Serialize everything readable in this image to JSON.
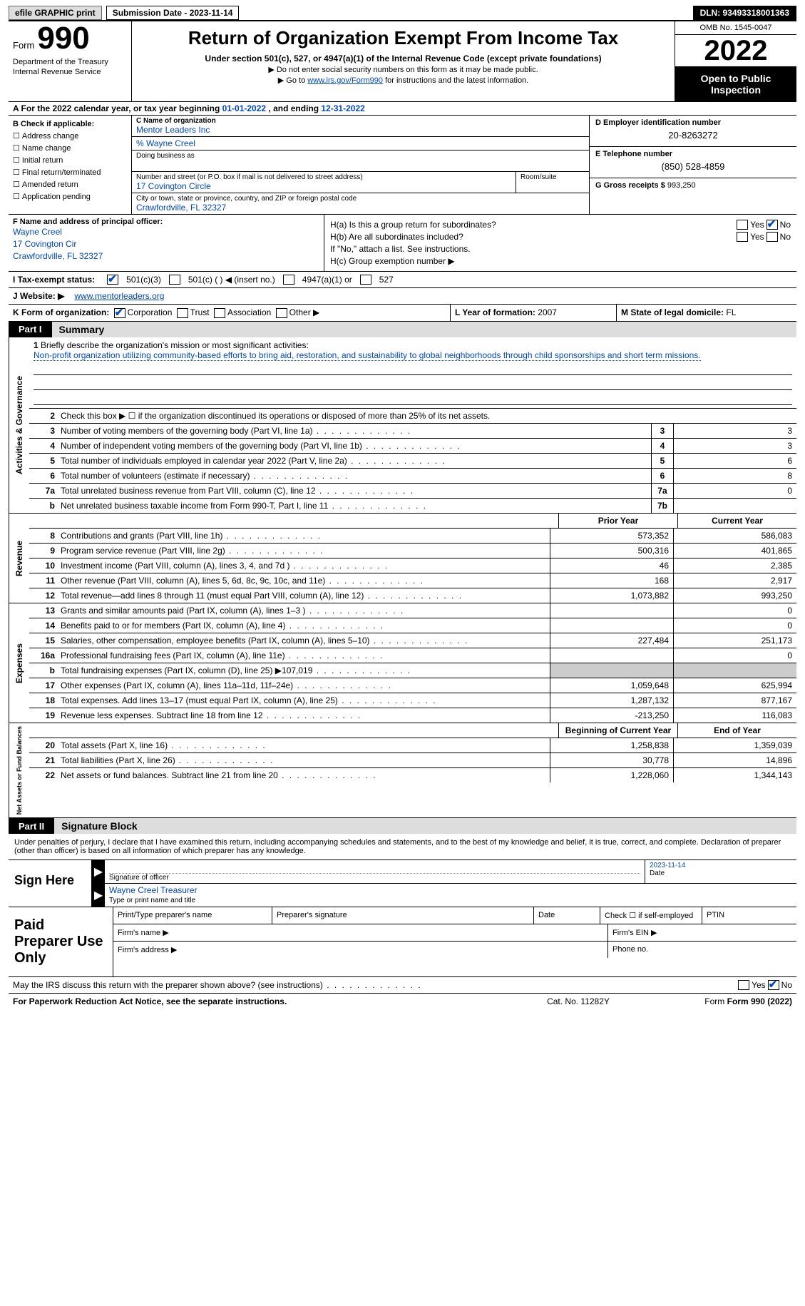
{
  "header": {
    "efile_btn": "efile GRAPHIC print",
    "submission": "Submission Date - 2023-11-14",
    "dln": "DLN: 93493318001363"
  },
  "title": {
    "form_label": "Form",
    "form_number": "990",
    "dept": "Department of the Treasury Internal Revenue Service",
    "main": "Return of Organization Exempt From Income Tax",
    "sub1": "Under section 501(c), 527, or 4947(a)(1) of the Internal Revenue Code (except private foundations)",
    "sub2": "▶ Do not enter social security numbers on this form as it may be made public.",
    "sub3_pre": "▶ Go to ",
    "sub3_link": "www.irs.gov/Form990",
    "sub3_post": " for instructions and the latest information.",
    "omb": "OMB No. 1545-0047",
    "year": "2022",
    "inspect": "Open to Public Inspection"
  },
  "row_a": {
    "text_pre": "A For the 2022 calendar year, or tax year beginning ",
    "begin": "01-01-2022",
    "mid": "  , and ending ",
    "end": "12-31-2022"
  },
  "col_b": {
    "hdr": "B Check if applicable:",
    "items": [
      "Address change",
      "Name change",
      "Initial return",
      "Final return/terminated",
      "Amended return",
      "Application pending"
    ]
  },
  "col_c": {
    "name_lbl": "C Name of organization",
    "name": "Mentor Leaders Inc",
    "care": "% Wayne Creel",
    "dba_lbl": "Doing business as",
    "dba": "",
    "street_lbl": "Number and street (or P.O. box if mail is not delivered to street address)",
    "room_lbl": "Room/suite",
    "street": "17 Covington Circle",
    "city_lbl": "City or town, state or province, country, and ZIP or foreign postal code",
    "city": "Crawfordville, FL  32327"
  },
  "col_d": {
    "ein_lbl": "D Employer identification number",
    "ein": "20-8263272",
    "tel_lbl": "E Telephone number",
    "tel": "(850) 528-4859",
    "gross_lbl": "G Gross receipts $",
    "gross": "993,250"
  },
  "col_f": {
    "lbl": "F Name and address of principal officer:",
    "name": "Wayne Creel",
    "addr1": "17 Covington Cir",
    "addr2": "Crawfordville, FL  32327"
  },
  "col_h": {
    "a": "H(a)  Is this a group return for subordinates?",
    "b": "H(b)  Are all subordinates included?",
    "note": "If \"No,\" attach a list. See instructions.",
    "c": "H(c)  Group exemption number ▶"
  },
  "row_i": {
    "lbl": "I  Tax-exempt status:",
    "o1": "501(c)(3)",
    "o2": "501(c) (  ) ◀ (insert no.)",
    "o3": "4947(a)(1) or",
    "o4": "527"
  },
  "row_j": {
    "lbl": "J  Website: ▶",
    "val": "www.mentorleaders.org"
  },
  "row_k": {
    "lbl": "K Form of organization:",
    "o1": "Corporation",
    "o2": "Trust",
    "o3": "Association",
    "o4": "Other ▶",
    "l_lbl": "L Year of formation:",
    "l_val": "2007",
    "m_lbl": "M State of legal domicile:",
    "m_val": "FL"
  },
  "part1": {
    "tab": "Part I",
    "title": "Summary"
  },
  "mission": {
    "q": "Briefly describe the organization's mission or most significant activities:",
    "val": "Non-profit organization utilizing community-based efforts to bring aid, restoration, and sustainability to global neighborhoods through child sponsorships and short term missions."
  },
  "lines_act": [
    {
      "n": "2",
      "d": "Check this box ▶ ☐  if the organization discontinued its operations or disposed of more than 25% of its net assets."
    },
    {
      "n": "3",
      "d": "Number of voting members of the governing body (Part VI, line 1a)",
      "box": "3",
      "v": "3"
    },
    {
      "n": "4",
      "d": "Number of independent voting members of the governing body (Part VI, line 1b)",
      "box": "4",
      "v": "3"
    },
    {
      "n": "5",
      "d": "Total number of individuals employed in calendar year 2022 (Part V, line 2a)",
      "box": "5",
      "v": "6"
    },
    {
      "n": "6",
      "d": "Total number of volunteers (estimate if necessary)",
      "box": "6",
      "v": "8"
    },
    {
      "n": "7a",
      "d": "Total unrelated business revenue from Part VIII, column (C), line 12",
      "box": "7a",
      "v": "0"
    },
    {
      "n": "b",
      "d": "Net unrelated business taxable income from Form 990-T, Part I, line 11",
      "box": "7b",
      "v": ""
    }
  ],
  "hdr_py": "Prior Year",
  "hdr_cy": "Current Year",
  "lines_rev": [
    {
      "n": "8",
      "d": "Contributions and grants (Part VIII, line 1h)",
      "py": "573,352",
      "cy": "586,083"
    },
    {
      "n": "9",
      "d": "Program service revenue (Part VIII, line 2g)",
      "py": "500,316",
      "cy": "401,865"
    },
    {
      "n": "10",
      "d": "Investment income (Part VIII, column (A), lines 3, 4, and 7d )",
      "py": "46",
      "cy": "2,385"
    },
    {
      "n": "11",
      "d": "Other revenue (Part VIII, column (A), lines 5, 6d, 8c, 9c, 10c, and 11e)",
      "py": "168",
      "cy": "2,917"
    },
    {
      "n": "12",
      "d": "Total revenue—add lines 8 through 11 (must equal Part VIII, column (A), line 12)",
      "py": "1,073,882",
      "cy": "993,250"
    }
  ],
  "lines_exp": [
    {
      "n": "13",
      "d": "Grants and similar amounts paid (Part IX, column (A), lines 1–3 )",
      "py": "",
      "cy": "0"
    },
    {
      "n": "14",
      "d": "Benefits paid to or for members (Part IX, column (A), line 4)",
      "py": "",
      "cy": "0"
    },
    {
      "n": "15",
      "d": "Salaries, other compensation, employee benefits (Part IX, column (A), lines 5–10)",
      "py": "227,484",
      "cy": "251,173"
    },
    {
      "n": "16a",
      "d": "Professional fundraising fees (Part IX, column (A), line 11e)",
      "py": "",
      "cy": "0"
    },
    {
      "n": "b",
      "d": "Total fundraising expenses (Part IX, column (D), line 25) ▶107,019",
      "py": "shade",
      "cy": "shade"
    },
    {
      "n": "17",
      "d": "Other expenses (Part IX, column (A), lines 11a–11d, 11f–24e)",
      "py": "1,059,648",
      "cy": "625,994"
    },
    {
      "n": "18",
      "d": "Total expenses. Add lines 13–17 (must equal Part IX, column (A), line 25)",
      "py": "1,287,132",
      "cy": "877,167"
    },
    {
      "n": "19",
      "d": "Revenue less expenses. Subtract line 18 from line 12",
      "py": "-213,250",
      "cy": "116,083"
    }
  ],
  "hdr_boy": "Beginning of Current Year",
  "hdr_eoy": "End of Year",
  "lines_net": [
    {
      "n": "20",
      "d": "Total assets (Part X, line 16)",
      "py": "1,258,838",
      "cy": "1,359,039"
    },
    {
      "n": "21",
      "d": "Total liabilities (Part X, line 26)",
      "py": "30,778",
      "cy": "14,896"
    },
    {
      "n": "22",
      "d": "Net assets or fund balances. Subtract line 21 from line 20",
      "py": "1,228,060",
      "cy": "1,344,143"
    }
  ],
  "part2": {
    "tab": "Part II",
    "title": "Signature Block"
  },
  "sig": {
    "intro": "Under penalties of perjury, I declare that I have examined this return, including accompanying schedules and statements, and to the best of my knowledge and belief, it is true, correct, and complete. Declaration of preparer (other than officer) is based on all information of which preparer has any knowledge.",
    "label": "Sign Here",
    "sig_lbl": "Signature of officer",
    "date_lbl": "Date",
    "date_val": "2023-11-14",
    "name_val": "Wayne Creel  Treasurer",
    "name_lbl": "Type or print name and title"
  },
  "prep": {
    "label": "Paid Preparer Use Only",
    "c1": "Print/Type preparer's name",
    "c2": "Preparer's signature",
    "c3": "Date",
    "c4": "Check ☐ if self-employed",
    "c5": "PTIN",
    "r2a": "Firm's name  ▶",
    "r2b": "Firm's EIN ▶",
    "r3a": "Firm's address ▶",
    "r3b": "Phone no."
  },
  "footer": {
    "q": "May the IRS discuss this return with the preparer shown above? (see instructions)",
    "notice": "For Paperwork Reduction Act Notice, see the separate instructions.",
    "cat": "Cat. No. 11282Y",
    "form": "Form 990 (2022)"
  },
  "sides": {
    "act": "Activities & Governance",
    "rev": "Revenue",
    "exp": "Expenses",
    "net": "Net Assets or Fund Balances"
  }
}
